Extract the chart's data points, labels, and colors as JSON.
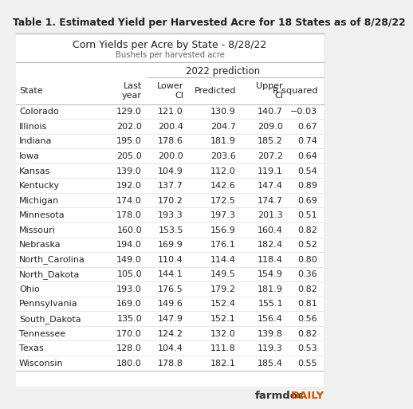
{
  "title": "Table 1. Estimated Yield per Harvested Acre for 18 States as of 8/28/22",
  "subtitle1": "Corn Yields per Acre by State - 8/28/22",
  "subtitle2": "Bushels per harvested acre",
  "prediction_label": "2022 prediction",
  "col_headers": [
    "State",
    "Last\nyear",
    "Lower\nCI",
    "Predicted",
    "Upper\nCI",
    "R squared"
  ],
  "rows": [
    [
      "Colorado",
      "129.0",
      "121.0",
      "130.9",
      "140.7",
      "−0.03"
    ],
    [
      "Illinois",
      "202.0",
      "200.4",
      "204.7",
      "209.0",
      "0.67"
    ],
    [
      "Indiana",
      "195.0",
      "178.6",
      "181.9",
      "185.2",
      "0.74"
    ],
    [
      "Iowa",
      "205.0",
      "200.0",
      "203.6",
      "207.2",
      "0.64"
    ],
    [
      "Kansas",
      "139.0",
      "104.9",
      "112.0",
      "119.1",
      "0.54"
    ],
    [
      "Kentucky",
      "192.0",
      "137.7",
      "142.6",
      "147.4",
      "0.89"
    ],
    [
      "Michigan",
      "174.0",
      "170.2",
      "172.5",
      "174.7",
      "0.69"
    ],
    [
      "Minnesota",
      "178.0",
      "193.3",
      "197.3",
      "201.3",
      "0.51"
    ],
    [
      "Missouri",
      "160.0",
      "153.5",
      "156.9",
      "160.4",
      "0.82"
    ],
    [
      "Nebraska",
      "194.0",
      "169.9",
      "176.1",
      "182.4",
      "0.52"
    ],
    [
      "North_Carolina",
      "149.0",
      "110.4",
      "114.4",
      "118.4",
      "0.80"
    ],
    [
      "North_Dakota",
      "105.0",
      "144.1",
      "149.5",
      "154.9",
      "0.36"
    ],
    [
      "Ohio",
      "193.0",
      "176.5",
      "179.2",
      "181.9",
      "0.82"
    ],
    [
      "Pennsylvania",
      "169.0",
      "149.6",
      "152.4",
      "155.1",
      "0.81"
    ],
    [
      "South_Dakota",
      "135.0",
      "147.9",
      "152.1",
      "156.4",
      "0.56"
    ],
    [
      "Tennessee",
      "170.0",
      "124.2",
      "132.0",
      "139.8",
      "0.82"
    ],
    [
      "Texas",
      "128.0",
      "104.4",
      "111.8",
      "119.3",
      "0.53"
    ],
    [
      "Wisconsin",
      "180.0",
      "178.8",
      "182.1",
      "185.4",
      "0.55"
    ]
  ],
  "bg_color": "#f0f0f0",
  "table_bg": "#ffffff",
  "line_color": "#bbbbbb",
  "text_color": "#222222",
  "title_fontsize": 8.8,
  "subtitle1_fontsize": 9.0,
  "subtitle2_fontsize": 7.2,
  "header_fontsize": 8.0,
  "cell_fontsize": 8.0,
  "watermark": "farmdoc",
  "watermark2": "DAILY",
  "watermark_color": "#333333",
  "watermark_orange": "#cc5500"
}
